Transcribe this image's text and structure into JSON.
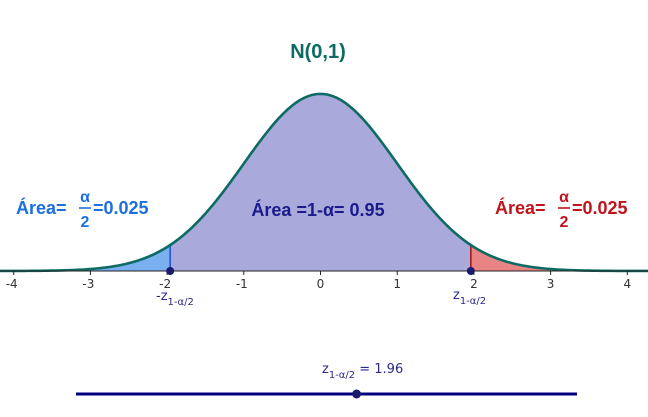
{
  "chart_data": {
    "type": "area",
    "title": "N(0,1)",
    "distribution": "standard normal",
    "x_range": [
      -4.3,
      4.3
    ],
    "x_ticks": [
      -4,
      -3,
      -2,
      -1,
      0,
      1,
      2,
      3,
      4
    ],
    "critical_value": 1.96,
    "regions": [
      {
        "name": "left_tail",
        "from": -4.3,
        "to": -1.96,
        "color": "#7ab0f0",
        "prefix": "Área=",
        "numerator": "α",
        "denominator": "2",
        "value_text": "=0.025",
        "text_color": "#1b6fe0"
      },
      {
        "name": "center",
        "from": -1.96,
        "to": 1.96,
        "color": "#a9aadb",
        "text": "Área =1-α= 0.95",
        "text_color": "#1a1a8c"
      },
      {
        "name": "right_tail",
        "from": 1.96,
        "to": 4.3,
        "color": "#e88484",
        "prefix": "Área=",
        "numerator": "α",
        "denominator": "2",
        "value_text": "=0.025",
        "text_color": "#c0141c"
      }
    ],
    "left_z_label": {
      "main": "-z",
      "sub": "1-α/2"
    },
    "right_z_label": {
      "main": "z",
      "sub": "1-α/2"
    },
    "curve_color": "#0e6b63",
    "title_color": "#0e6b63"
  },
  "slider": {
    "label_main": "z",
    "label_sub": "1-α/2",
    "label_value": " = 1.96",
    "value": 1.96,
    "min": 0,
    "max": 3.5,
    "color": "#00007f"
  }
}
